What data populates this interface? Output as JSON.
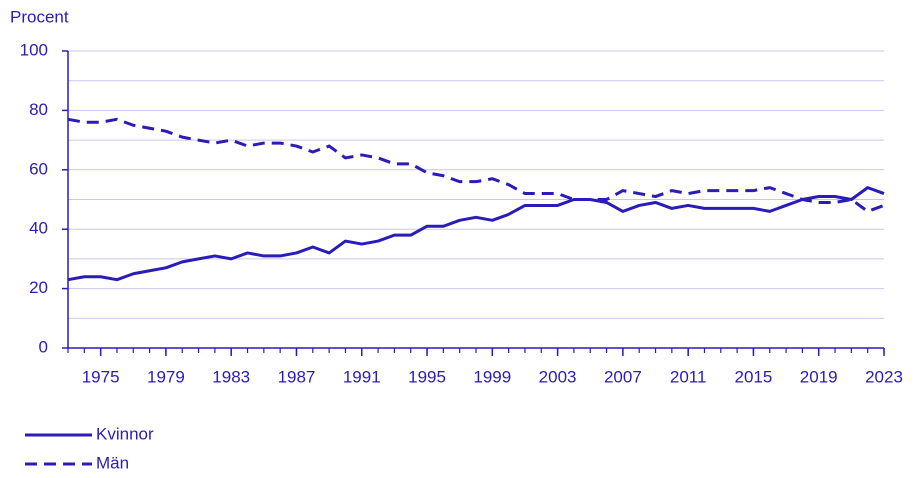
{
  "chart_data": {
    "type": "line",
    "y_label": "Procent",
    "x": [
      1973,
      1974,
      1975,
      1976,
      1977,
      1978,
      1979,
      1980,
      1981,
      1982,
      1983,
      1984,
      1985,
      1986,
      1987,
      1988,
      1989,
      1990,
      1991,
      1992,
      1993,
      1994,
      1995,
      1996,
      1997,
      1998,
      1999,
      2000,
      2001,
      2002,
      2003,
      2004,
      2005,
      2006,
      2007,
      2008,
      2009,
      2010,
      2011,
      2012,
      2013,
      2014,
      2015,
      2016,
      2017,
      2018,
      2019,
      2020,
      2021,
      2022,
      2023
    ],
    "series": [
      {
        "name": "Kvinnor",
        "color": "#2a1cb8",
        "dash": false,
        "values": [
          23,
          24,
          24,
          23,
          25,
          26,
          27,
          29,
          30,
          31,
          30,
          32,
          31,
          31,
          32,
          34,
          32,
          36,
          35,
          36,
          38,
          38,
          41,
          41,
          43,
          44,
          43,
          45,
          48,
          48,
          48,
          50,
          50,
          49,
          46,
          48,
          49,
          47,
          48,
          47,
          47,
          47,
          47,
          46,
          48,
          50,
          51,
          51,
          50,
          54,
          52
        ]
      },
      {
        "name": "Män",
        "color": "#2a1cb8",
        "dash": true,
        "values": [
          77,
          76,
          76,
          77,
          75,
          74,
          73,
          71,
          70,
          69,
          70,
          68,
          69,
          69,
          68,
          66,
          68,
          64,
          65,
          64,
          62,
          62,
          59,
          58,
          56,
          56,
          57,
          55,
          52,
          52,
          52,
          50,
          50,
          50,
          53,
          52,
          51,
          53,
          52,
          53,
          53,
          53,
          53,
          54,
          52,
          50,
          49,
          49,
          50,
          46,
          48
        ]
      }
    ],
    "xlim": [
      1973,
      2023
    ],
    "xticks": [
      1975,
      1979,
      1983,
      1987,
      1991,
      1995,
      1999,
      2003,
      2007,
      2011,
      2015,
      2019,
      2023
    ],
    "ylim": [
      0,
      100
    ],
    "yticks": [
      0,
      20,
      40,
      60,
      80,
      100
    ],
    "yminor": [
      10,
      30,
      50,
      70,
      90
    ],
    "grid": true
  }
}
